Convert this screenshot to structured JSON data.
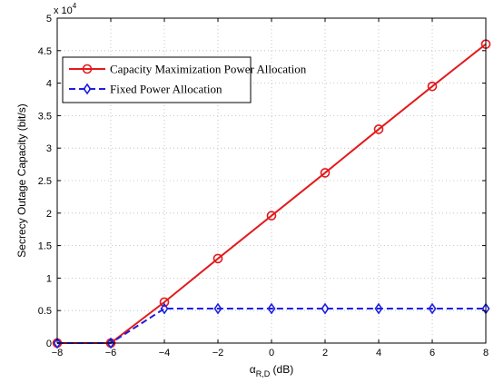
{
  "chart_data": {
    "type": "line",
    "x": [
      -8,
      -6,
      -4,
      -2,
      0,
      2,
      4,
      6,
      8
    ],
    "series": [
      {
        "name": "Capacity Maximization Power Allocation",
        "color": "#e31a1c",
        "line_style": "solid",
        "marker": "circle",
        "values": [
          0,
          0,
          6300,
          13000,
          19600,
          26200,
          32900,
          39500,
          46000
        ]
      },
      {
        "name": "Fixed Power Allocation",
        "color": "#1f1fe0",
        "line_style": "dashed",
        "marker": "diamond",
        "values": [
          0,
          0,
          5300,
          5300,
          5300,
          5300,
          5300,
          5300,
          5300
        ]
      }
    ],
    "xlabel_main": "α",
    "xlabel_sub": "R,D",
    "xlabel_unit": " (dB)",
    "ylabel": "Secrecy Outage Capacity (bit/s)",
    "y_multiplier_base": "x 10",
    "y_multiplier_exp": "4",
    "xlim": [
      -8,
      8
    ],
    "ylim": [
      0,
      50000
    ],
    "x_ticks": [
      -8,
      -6,
      -4,
      -2,
      0,
      2,
      4,
      6,
      8
    ],
    "x_tick_labels": [
      "−8",
      "−6",
      "−4",
      "−2",
      "0",
      "2",
      "4",
      "6",
      "8"
    ],
    "y_ticks": [
      0,
      5000,
      10000,
      15000,
      20000,
      25000,
      30000,
      35000,
      40000,
      45000,
      50000
    ],
    "y_tick_labels": [
      "0",
      "0.5",
      "1",
      "1.5",
      "2",
      "2.5",
      "3",
      "3.5",
      "4",
      "4.5",
      "5"
    ],
    "grid": true,
    "legend_position": "top-left"
  }
}
